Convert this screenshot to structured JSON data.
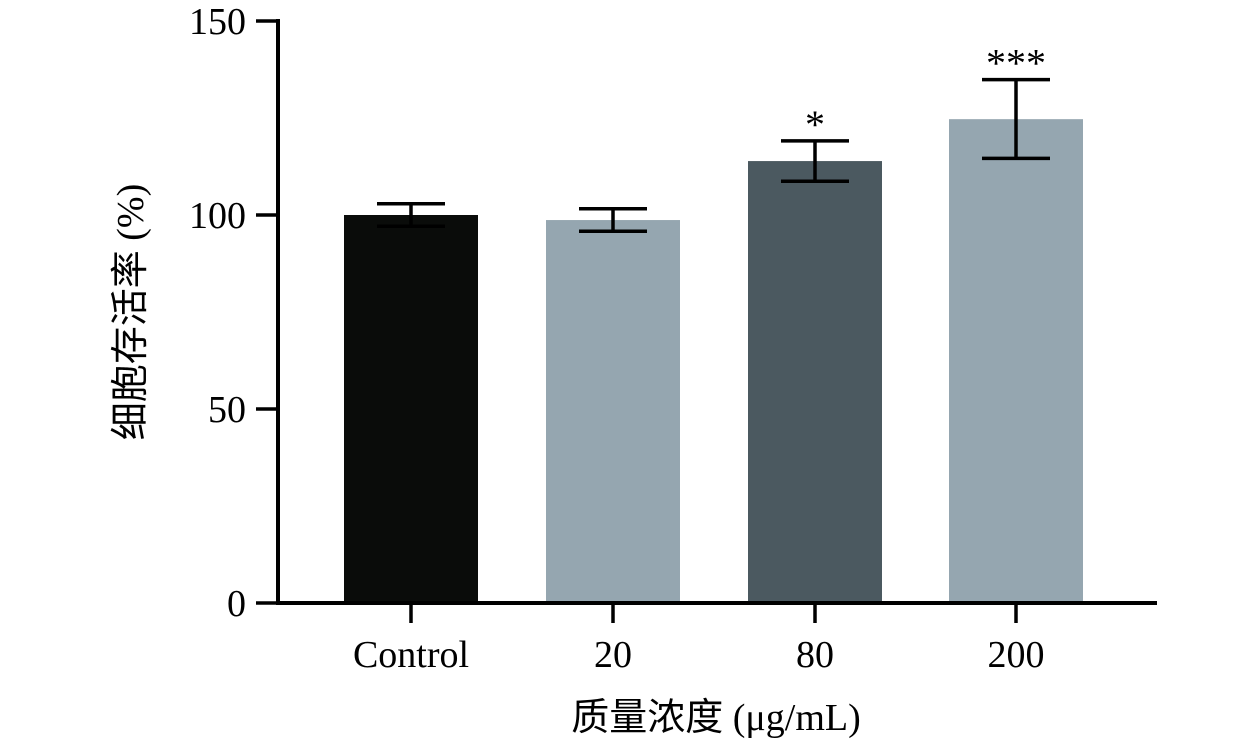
{
  "chart_data": {
    "type": "bar",
    "title": "",
    "xlabel": "质量浓度 (μg/mL)",
    "ylabel": "细胞存活率 (%)",
    "ylim": [
      0,
      150
    ],
    "yticks": [
      0,
      50,
      100,
      150
    ],
    "grid": false,
    "categories": [
      "Control",
      "20",
      "80",
      "200"
    ],
    "values": [
      100,
      98.7,
      113.9,
      124.7
    ],
    "error_upper": [
      102.9,
      101.6,
      119.1,
      134.9
    ],
    "error_lower": [
      97.1,
      95.8,
      108.7,
      114.6
    ],
    "significance": [
      "",
      "",
      "*",
      "***"
    ],
    "colors": [
      "#0a0c0a",
      "#95a6b0",
      "#4b5960",
      "#95a6b0"
    ]
  }
}
